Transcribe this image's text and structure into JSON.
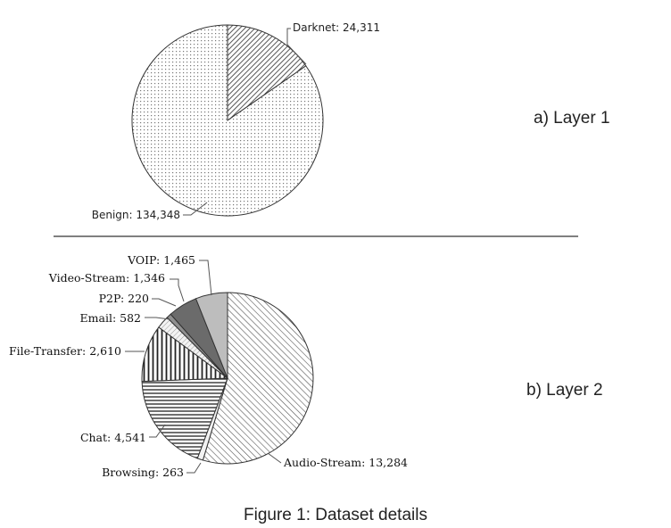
{
  "caption": "Figure 1: Dataset details",
  "divider": true,
  "chart_data": [
    {
      "type": "pie",
      "side_label": "a) Layer 1",
      "labels": [
        "Darknet",
        "Benign"
      ],
      "values": [
        24311,
        134348
      ],
      "value_text": [
        "24,311",
        "134,348"
      ],
      "fills": [
        "hatch-dense",
        "dots"
      ],
      "start_angle_deg": 0,
      "direction": "clockwise"
    },
    {
      "type": "pie",
      "side_label": "b) Layer 2",
      "labels": [
        "Audio-Stream",
        "Browsing",
        "Chat",
        "File-Transfer",
        "Email",
        "P2P",
        "Video-Stream",
        "VOIP"
      ],
      "values": [
        13284,
        263,
        4541,
        2610,
        582,
        220,
        1346,
        1465
      ],
      "value_text": [
        "13,284",
        "263",
        "4,541",
        "2,610",
        "582",
        "220",
        "1,346",
        "1,465"
      ],
      "fills": [
        "hatch-diag",
        "solid-light",
        "horizontal",
        "vertical",
        "hatch-cross-light",
        "solid-mid",
        "solid-dark",
        "solid-gray"
      ],
      "start_angle_deg": 0,
      "direction": "clockwise"
    }
  ]
}
